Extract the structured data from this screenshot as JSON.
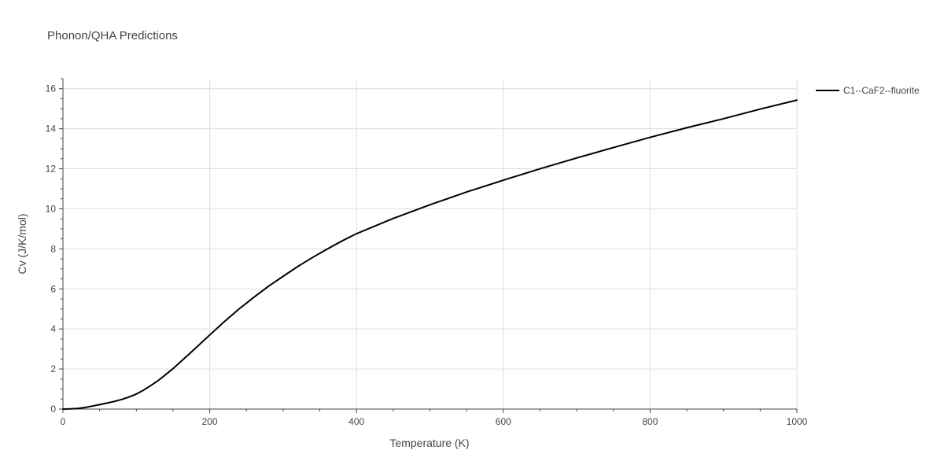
{
  "chart_data": {
    "type": "line",
    "title": "Phonon/QHA Predictions",
    "xlabel": "Temperature (K)",
    "ylabel": "Cv (J/K/mol)",
    "xlim": [
      0,
      1000
    ],
    "ylim": [
      0,
      16.5
    ],
    "x_ticks": [
      "0",
      "200",
      "400",
      "600",
      "800",
      "1000"
    ],
    "y_ticks": [
      "0",
      "2",
      "4",
      "6",
      "8",
      "10",
      "12",
      "14",
      "16"
    ],
    "grid": true,
    "legend_position": "top-right",
    "series": [
      {
        "name": "C1--CaF2--fluorite",
        "color": "#000000",
        "x": [
          0,
          10,
          20,
          30,
          40,
          50,
          60,
          70,
          80,
          90,
          100,
          110,
          120,
          130,
          140,
          150,
          160,
          170,
          180,
          190,
          200,
          220,
          240,
          260,
          280,
          300,
          320,
          340,
          360,
          380,
          400,
          450,
          500,
          550,
          600,
          650,
          700,
          750,
          800,
          850,
          900,
          950,
          1000
        ],
        "y": [
          0,
          0.01,
          0.03,
          0.08,
          0.15,
          0.22,
          0.3,
          0.38,
          0.48,
          0.6,
          0.75,
          0.95,
          1.18,
          1.43,
          1.72,
          2.02,
          2.35,
          2.68,
          3.02,
          3.36,
          3.7,
          4.37,
          5.0,
          5.58,
          6.13,
          6.63,
          7.12,
          7.57,
          7.99,
          8.39,
          8.76,
          9.52,
          10.2,
          10.84,
          11.43,
          12.0,
          12.54,
          13.06,
          13.57,
          14.05,
          14.5,
          14.98,
          15.43
        ]
      }
    ]
  }
}
